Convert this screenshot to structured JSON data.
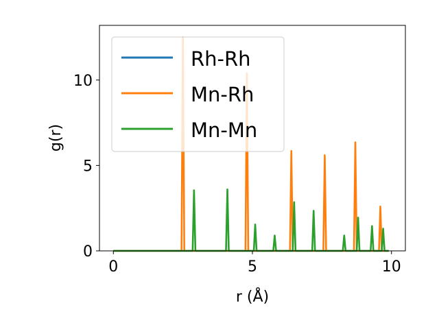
{
  "chart_data": {
    "type": "line",
    "title": "",
    "xlabel": "r (Å)",
    "ylabel": "g(r)",
    "xlim": [
      -0.5,
      10.5
    ],
    "ylim": [
      0,
      13.2
    ],
    "xticks": [
      0,
      5,
      10
    ],
    "yticks": [
      0,
      5,
      10
    ],
    "grid": false,
    "legend_position": "top-left",
    "peak_width": 0.05,
    "series": [
      {
        "name": "Rh-Rh",
        "color": "#1f77b4",
        "peaks": []
      },
      {
        "name": "Mn-Rh",
        "color": "#ff7f0e",
        "peaks": [
          {
            "r": 2.5,
            "g": 12.5
          },
          {
            "r": 4.8,
            "g": 10.4
          },
          {
            "r": 6.4,
            "g": 5.85
          },
          {
            "r": 7.6,
            "g": 5.6
          },
          {
            "r": 8.7,
            "g": 6.35
          },
          {
            "r": 9.6,
            "g": 2.6
          }
        ]
      },
      {
        "name": "Mn-Mn",
        "color": "#2ca02c",
        "peaks": [
          {
            "r": 2.9,
            "g": 3.55
          },
          {
            "r": 4.1,
            "g": 3.6
          },
          {
            "r": 5.1,
            "g": 1.55
          },
          {
            "r": 5.8,
            "g": 0.9
          },
          {
            "r": 6.5,
            "g": 2.85
          },
          {
            "r": 7.2,
            "g": 2.35
          },
          {
            "r": 8.3,
            "g": 0.9
          },
          {
            "r": 8.8,
            "g": 1.95
          },
          {
            "r": 9.3,
            "g": 1.45
          },
          {
            "r": 9.7,
            "g": 1.3
          }
        ]
      }
    ]
  }
}
